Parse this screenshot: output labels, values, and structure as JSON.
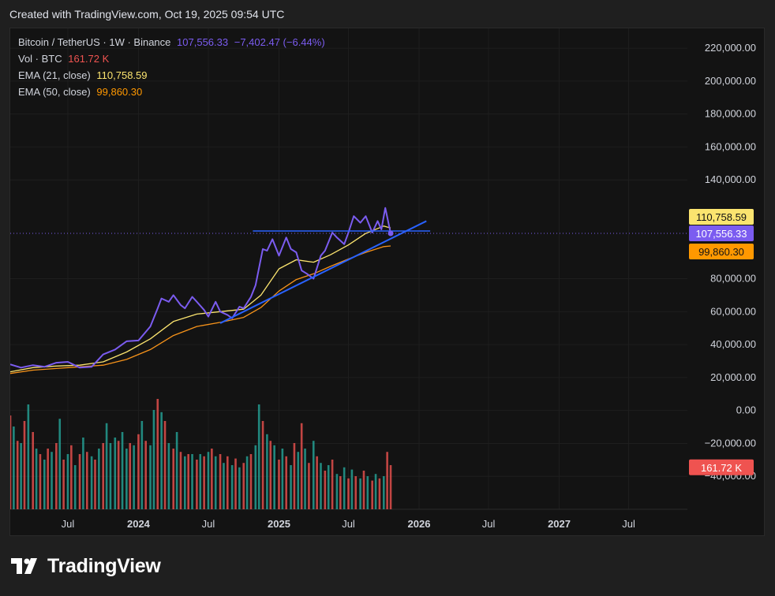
{
  "header": {
    "created_text": "Created with TradingView.com, Oct 19, 2025 09:54 UTC"
  },
  "legend": {
    "symbol": "Bitcoin / TetherUS · 1W · Binance",
    "price": "107,556.33",
    "change": "−7,402.47 (−6.44%)",
    "vol_label": "Vol · BTC",
    "vol_value": "161.72 K",
    "ema21_label": "EMA (21, close)",
    "ema21_value": "110,758.59",
    "ema50_label": "EMA (50, close)",
    "ema50_value": "99,860.30"
  },
  "badges": {
    "ema21": "110,758.59",
    "price": "107,556.33",
    "ema50": "99,860.30",
    "volume": "161.72 K"
  },
  "logo": {
    "text": "TradingView"
  },
  "colors": {
    "price_line": "#7b5cf0",
    "price_line_early": "#5b7cf0",
    "ema21": "#fbe46f",
    "ema50": "#f7931a",
    "trendline": "#2962ff",
    "vol_up": "#26a69a",
    "vol_down": "#ef5350",
    "price_badge": "#7b5cf0",
    "ema21_badge": "#fbe46f",
    "ema50_badge": "#ff9800",
    "volume_badge": "#ef5350"
  },
  "chart_data": {
    "type": "line",
    "title": "Bitcoin / TetherUS · 1W · Binance",
    "y_ticks": [
      "220,000.00",
      "200,000.00",
      "180,000.00",
      "160,000.00",
      "140,000.00",
      "80,000.00",
      "60,000.00",
      "40,000.00",
      "20,000.00",
      "0.00",
      "−20,000.00",
      "−40,000.00"
    ],
    "y_tick_values": [
      220000,
      200000,
      180000,
      160000,
      140000,
      80000,
      60000,
      40000,
      20000,
      0,
      -20000,
      -40000
    ],
    "x_ticks": [
      "Jul",
      "2024",
      "Jul",
      "2025",
      "Jul",
      "2026",
      "Jul",
      "2027",
      "Jul"
    ],
    "x_tick_dates": [
      "2023-07-01",
      "2024-01-01",
      "2024-07-01",
      "2025-01-01",
      "2025-07-01",
      "2026-01-01",
      "2026-07-01",
      "2027-01-01",
      "2027-07-01"
    ],
    "x_range": [
      "2023-02-01",
      "2027-12-01"
    ],
    "ylim": [
      -60000,
      232000
    ],
    "grid": true,
    "series": [
      {
        "name": "BTC/USDT",
        "points": [
          [
            "2023-02-01",
            28000
          ],
          [
            "2023-03-01",
            26000
          ],
          [
            "2023-04-01",
            27500
          ],
          [
            "2023-05-01",
            26500
          ],
          [
            "2023-06-01",
            29000
          ],
          [
            "2023-07-01",
            29500
          ],
          [
            "2023-08-01",
            26000
          ],
          [
            "2023-09-01",
            26500
          ],
          [
            "2023-10-01",
            34000
          ],
          [
            "2023-11-01",
            37000
          ],
          [
            "2023-12-01",
            42000
          ],
          [
            "2024-01-01",
            42500
          ],
          [
            "2024-02-01",
            51000
          ],
          [
            "2024-02-20",
            62000
          ],
          [
            "2024-03-01",
            68000
          ],
          [
            "2024-03-20",
            66000
          ],
          [
            "2024-04-01",
            70000
          ],
          [
            "2024-04-20",
            64000
          ],
          [
            "2024-05-01",
            62000
          ],
          [
            "2024-05-20",
            69000
          ],
          [
            "2024-06-01",
            66000
          ],
          [
            "2024-06-20",
            61000
          ],
          [
            "2024-07-01",
            57000
          ],
          [
            "2024-07-20",
            66000
          ],
          [
            "2024-08-01",
            60000
          ],
          [
            "2024-08-20",
            58000
          ],
          [
            "2024-09-01",
            56000
          ],
          [
            "2024-09-20",
            63000
          ],
          [
            "2024-10-01",
            62000
          ],
          [
            "2024-10-20",
            69000
          ],
          [
            "2024-11-01",
            76000
          ],
          [
            "2024-11-20",
            98000
          ],
          [
            "2024-12-01",
            97000
          ],
          [
            "2024-12-15",
            104000
          ],
          [
            "2025-01-01",
            94000
          ],
          [
            "2025-01-20",
            105000
          ],
          [
            "2025-02-01",
            98000
          ],
          [
            "2025-02-15",
            96000
          ],
          [
            "2025-03-01",
            85000
          ],
          [
            "2025-03-15",
            83000
          ],
          [
            "2025-04-01",
            80000
          ],
          [
            "2025-04-20",
            94000
          ],
          [
            "2025-05-01",
            97000
          ],
          [
            "2025-05-20",
            108000
          ],
          [
            "2025-06-01",
            105000
          ],
          [
            "2025-06-20",
            101000
          ],
          [
            "2025-07-01",
            108000
          ],
          [
            "2025-07-15",
            118000
          ],
          [
            "2025-08-01",
            114000
          ],
          [
            "2025-08-15",
            118000
          ],
          [
            "2025-09-01",
            108000
          ],
          [
            "2025-09-15",
            115000
          ],
          [
            "2025-09-25",
            110000
          ],
          [
            "2025-10-05",
            123000
          ],
          [
            "2025-10-19",
            107556
          ]
        ]
      },
      {
        "name": "EMA (21, close)",
        "points": [
          [
            "2023-02-01",
            23500
          ],
          [
            "2023-04-01",
            26000
          ],
          [
            "2023-06-01",
            27000
          ],
          [
            "2023-08-01",
            27500
          ],
          [
            "2023-10-01",
            29500
          ],
          [
            "2023-12-01",
            35500
          ],
          [
            "2024-02-01",
            43500
          ],
          [
            "2024-04-01",
            54000
          ],
          [
            "2024-06-01",
            58500
          ],
          [
            "2024-08-01",
            60000
          ],
          [
            "2024-10-01",
            61500
          ],
          [
            "2024-11-15",
            70000
          ],
          [
            "2025-01-01",
            86000
          ],
          [
            "2025-02-15",
            91500
          ],
          [
            "2025-04-01",
            90000
          ],
          [
            "2025-05-15",
            94500
          ],
          [
            "2025-07-01",
            100500
          ],
          [
            "2025-08-15",
            107500
          ],
          [
            "2025-10-01",
            112000
          ],
          [
            "2025-10-19",
            110759
          ]
        ]
      },
      {
        "name": "EMA (50, close)",
        "points": [
          [
            "2023-02-01",
            22500
          ],
          [
            "2023-04-01",
            24500
          ],
          [
            "2023-06-01",
            25500
          ],
          [
            "2023-08-01",
            26500
          ],
          [
            "2023-10-01",
            27500
          ],
          [
            "2023-12-01",
            31000
          ],
          [
            "2024-02-01",
            37000
          ],
          [
            "2024-04-01",
            45500
          ],
          [
            "2024-06-01",
            51000
          ],
          [
            "2024-08-01",
            53500
          ],
          [
            "2024-10-01",
            56500
          ],
          [
            "2024-11-15",
            62500
          ],
          [
            "2025-01-01",
            72500
          ],
          [
            "2025-02-15",
            79500
          ],
          [
            "2025-04-01",
            83000
          ],
          [
            "2025-05-15",
            87500
          ],
          [
            "2025-07-01",
            92000
          ],
          [
            "2025-08-15",
            96000
          ],
          [
            "2025-10-01",
            99500
          ],
          [
            "2025-10-19",
            99860
          ]
        ]
      }
    ],
    "drawings": {
      "trendline": [
        [
          "2024-08-01",
          53000
        ],
        [
          "2026-01-20",
          115000
        ]
      ],
      "horizontal_line": [
        [
          "2024-10-25",
          109000
        ],
        [
          "2026-01-30",
          109000
        ]
      ]
    },
    "volume": {
      "bars": [
        {
          "date": "2023-02-01",
          "up": false,
          "v": 0.85
        },
        {
          "date": "2023-02-10",
          "up": true,
          "v": 0.75
        },
        {
          "date": "2023-02-20",
          "up": false,
          "v": 0.62
        },
        {
          "date": "2023-03-01",
          "up": true,
          "v": 0.6
        },
        {
          "date": "2023-03-10",
          "up": false,
          "v": 0.8
        },
        {
          "date": "2023-03-20",
          "up": true,
          "v": 0.95
        },
        {
          "date": "2023-04-01",
          "up": false,
          "v": 0.7
        },
        {
          "date": "2023-04-10",
          "up": true,
          "v": 0.55
        },
        {
          "date": "2023-04-20",
          "up": false,
          "v": 0.5
        },
        {
          "date": "2023-05-01",
          "up": true,
          "v": 0.45
        },
        {
          "date": "2023-05-10",
          "up": false,
          "v": 0.55
        },
        {
          "date": "2023-05-20",
          "up": true,
          "v": 0.52
        },
        {
          "date": "2023-06-01",
          "up": false,
          "v": 0.6
        },
        {
          "date": "2023-06-10",
          "up": true,
          "v": 0.82
        },
        {
          "date": "2023-06-20",
          "up": false,
          "v": 0.45
        },
        {
          "date": "2023-07-01",
          "up": true,
          "v": 0.5
        },
        {
          "date": "2023-07-10",
          "up": false,
          "v": 0.58
        },
        {
          "date": "2023-07-20",
          "up": true,
          "v": 0.4
        },
        {
          "date": "2023-08-01",
          "up": false,
          "v": 0.5
        },
        {
          "date": "2023-08-10",
          "up": true,
          "v": 0.65
        },
        {
          "date": "2023-08-20",
          "up": false,
          "v": 0.52
        },
        {
          "date": "2023-09-01",
          "up": true,
          "v": 0.48
        },
        {
          "date": "2023-09-10",
          "up": false,
          "v": 0.45
        },
        {
          "date": "2023-09-20",
          "up": true,
          "v": 0.55
        },
        {
          "date": "2023-10-01",
          "up": false,
          "v": 0.6
        },
        {
          "date": "2023-10-10",
          "up": true,
          "v": 0.78
        },
        {
          "date": "2023-10-20",
          "up": true,
          "v": 0.6
        },
        {
          "date": "2023-11-01",
          "up": true,
          "v": 0.65
        },
        {
          "date": "2023-11-10",
          "up": false,
          "v": 0.62
        },
        {
          "date": "2023-11-20",
          "up": true,
          "v": 0.7
        },
        {
          "date": "2023-12-01",
          "up": true,
          "v": 0.55
        },
        {
          "date": "2023-12-10",
          "up": false,
          "v": 0.6
        },
        {
          "date": "2023-12-20",
          "up": true,
          "v": 0.58
        },
        {
          "date": "2024-01-01",
          "up": false,
          "v": 0.68
        },
        {
          "date": "2024-01-10",
          "up": true,
          "v": 0.8
        },
        {
          "date": "2024-01-20",
          "up": false,
          "v": 0.62
        },
        {
          "date": "2024-02-01",
          "up": true,
          "v": 0.58
        },
        {
          "date": "2024-02-10",
          "up": true,
          "v": 0.9
        },
        {
          "date": "2024-02-20",
          "up": false,
          "v": 1.0
        },
        {
          "date": "2024-03-01",
          "up": true,
          "v": 0.88
        },
        {
          "date": "2024-03-10",
          "up": false,
          "v": 0.8
        },
        {
          "date": "2024-03-20",
          "up": true,
          "v": 0.6
        },
        {
          "date": "2024-04-01",
          "up": false,
          "v": 0.55
        },
        {
          "date": "2024-04-10",
          "up": true,
          "v": 0.7
        },
        {
          "date": "2024-04-20",
          "up": false,
          "v": 0.52
        },
        {
          "date": "2024-05-01",
          "up": true,
          "v": 0.48
        },
        {
          "date": "2024-05-10",
          "up": false,
          "v": 0.5
        },
        {
          "date": "2024-05-20",
          "up": true,
          "v": 0.5
        },
        {
          "date": "2024-06-01",
          "up": false,
          "v": 0.45
        },
        {
          "date": "2024-06-10",
          "up": true,
          "v": 0.5
        },
        {
          "date": "2024-06-20",
          "up": false,
          "v": 0.48
        },
        {
          "date": "2024-07-01",
          "up": true,
          "v": 0.52
        },
        {
          "date": "2024-07-10",
          "up": false,
          "v": 0.55
        },
        {
          "date": "2024-07-20",
          "up": true,
          "v": 0.48
        },
        {
          "date": "2024-08-01",
          "up": false,
          "v": 0.5
        },
        {
          "date": "2024-08-10",
          "up": true,
          "v": 0.42
        },
        {
          "date": "2024-08-20",
          "up": false,
          "v": 0.48
        },
        {
          "date": "2024-09-01",
          "up": true,
          "v": 0.4
        },
        {
          "date": "2024-09-10",
          "up": false,
          "v": 0.46
        },
        {
          "date": "2024-09-20",
          "up": true,
          "v": 0.38
        },
        {
          "date": "2024-10-01",
          "up": false,
          "v": 0.42
        },
        {
          "date": "2024-10-10",
          "up": true,
          "v": 0.48
        },
        {
          "date": "2024-10-20",
          "up": false,
          "v": 0.5
        },
        {
          "date": "2024-11-01",
          "up": true,
          "v": 0.58
        },
        {
          "date": "2024-11-10",
          "up": true,
          "v": 0.95
        },
        {
          "date": "2024-11-20",
          "up": false,
          "v": 0.8
        },
        {
          "date": "2024-12-01",
          "up": true,
          "v": 0.68
        },
        {
          "date": "2024-12-10",
          "up": false,
          "v": 0.62
        },
        {
          "date": "2024-12-20",
          "up": true,
          "v": 0.58
        },
        {
          "date": "2025-01-01",
          "up": false,
          "v": 0.45
        },
        {
          "date": "2025-01-10",
          "up": true,
          "v": 0.55
        },
        {
          "date": "2025-01-20",
          "up": false,
          "v": 0.48
        },
        {
          "date": "2025-02-01",
          "up": true,
          "v": 0.4
        },
        {
          "date": "2025-02-10",
          "up": false,
          "v": 0.6
        },
        {
          "date": "2025-02-20",
          "up": true,
          "v": 0.52
        },
        {
          "date": "2025-03-01",
          "up": false,
          "v": 0.78
        },
        {
          "date": "2025-03-10",
          "up": true,
          "v": 0.55
        },
        {
          "date": "2025-03-20",
          "up": false,
          "v": 0.42
        },
        {
          "date": "2025-04-01",
          "up": true,
          "v": 0.62
        },
        {
          "date": "2025-04-10",
          "up": false,
          "v": 0.48
        },
        {
          "date": "2025-04-20",
          "up": true,
          "v": 0.42
        },
        {
          "date": "2025-05-01",
          "up": false,
          "v": 0.35
        },
        {
          "date": "2025-05-10",
          "up": true,
          "v": 0.4
        },
        {
          "date": "2025-05-20",
          "up": false,
          "v": 0.45
        },
        {
          "date": "2025-06-01",
          "up": true,
          "v": 0.32
        },
        {
          "date": "2025-06-10",
          "up": false,
          "v": 0.3
        },
        {
          "date": "2025-06-20",
          "up": true,
          "v": 0.38
        },
        {
          "date": "2025-07-01",
          "up": false,
          "v": 0.28
        },
        {
          "date": "2025-07-10",
          "up": true,
          "v": 0.36
        },
        {
          "date": "2025-07-20",
          "up": false,
          "v": 0.3
        },
        {
          "date": "2025-08-01",
          "up": true,
          "v": 0.28
        },
        {
          "date": "2025-08-10",
          "up": false,
          "v": 0.35
        },
        {
          "date": "2025-08-20",
          "up": true,
          "v": 0.3
        },
        {
          "date": "2025-09-01",
          "up": false,
          "v": 0.26
        },
        {
          "date": "2025-09-10",
          "up": true,
          "v": 0.32
        },
        {
          "date": "2025-09-20",
          "up": false,
          "v": 0.28
        },
        {
          "date": "2025-10-01",
          "up": true,
          "v": 0.3
        },
        {
          "date": "2025-10-10",
          "up": false,
          "v": 0.52
        },
        {
          "date": "2025-10-19",
          "up": false,
          "v": 0.4
        }
      ]
    }
  }
}
